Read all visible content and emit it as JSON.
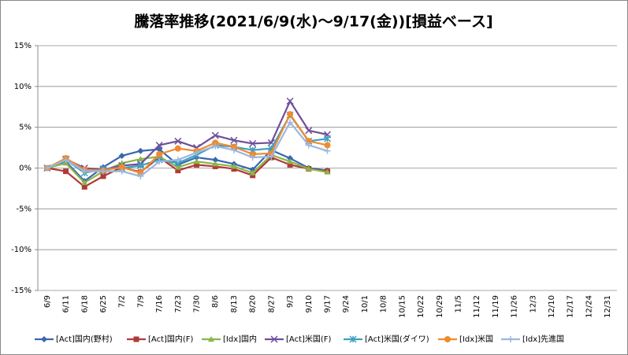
{
  "chart_data": {
    "type": "line",
    "title": "騰落率推移(2021/6/9(水)～9/17(金))[損益ベース]",
    "categories": [
      "6/9",
      "6/11",
      "6/18",
      "6/25",
      "7/2",
      "7/9",
      "7/16",
      "7/23",
      "7/30",
      "8/6",
      "8/13",
      "8/20",
      "8/27",
      "9/3",
      "9/10",
      "9/17",
      "9/24",
      "10/1",
      "10/8",
      "10/15",
      "10/22",
      "10/29",
      "11/5",
      "11/12",
      "11/19",
      "11/26",
      "12/3",
      "12/10",
      "12/17",
      "12/24",
      "12/31"
    ],
    "series": [
      {
        "name": "[Act]国内(野村)",
        "color": "#3a67b0",
        "marker": "diamond",
        "values": [
          0,
          0.8,
          -1.6,
          0.1,
          1.5,
          2.1,
          2.3,
          0.4,
          1.3,
          1.0,
          0.5,
          -0.2,
          2.2,
          1.2,
          0,
          -0.3,
          null,
          null,
          null,
          null,
          null,
          null,
          null,
          null,
          null,
          null,
          null,
          null,
          null,
          null,
          null
        ]
      },
      {
        "name": "[Act]国内(F)",
        "color": "#b03a38",
        "marker": "square",
        "values": [
          0,
          -0.4,
          -2.3,
          -1.0,
          0.1,
          -0.5,
          1.3,
          -0.3,
          0.4,
          0.2,
          -0.1,
          -0.9,
          1.3,
          0.4,
          -0.1,
          -0.4,
          null,
          null,
          null,
          null,
          null,
          null,
          null,
          null,
          null,
          null,
          null,
          null,
          null,
          null,
          null
        ]
      },
      {
        "name": "[Idx]国内",
        "color": "#8cb547",
        "marker": "triangle",
        "values": [
          0,
          0.6,
          -1.8,
          -0.4,
          0.6,
          1.1,
          1.4,
          0.1,
          0.8,
          0.5,
          0.2,
          -0.6,
          1.6,
          0.8,
          -0.1,
          -0.5,
          null,
          null,
          null,
          null,
          null,
          null,
          null,
          null,
          null,
          null,
          null,
          null,
          null,
          null,
          null
        ]
      },
      {
        "name": "[Act]米国(F)",
        "color": "#6f4f9a",
        "marker": "x",
        "values": [
          0,
          1.1,
          0,
          -0.2,
          0.3,
          0.5,
          2.8,
          3.3,
          2.5,
          4.0,
          3.4,
          3.0,
          3.1,
          8.2,
          4.6,
          4.1,
          null,
          null,
          null,
          null,
          null,
          null,
          null,
          null,
          null,
          null,
          null,
          null,
          null,
          null,
          null
        ]
      },
      {
        "name": "[Act]米国(ダイワ)",
        "color": "#3fa0c0",
        "marker": "star",
        "values": [
          0,
          1.0,
          -0.6,
          -0.1,
          0,
          0.3,
          1.0,
          0.6,
          1.6,
          2.8,
          2.6,
          2.2,
          2.4,
          6.5,
          3.3,
          3.6,
          null,
          null,
          null,
          null,
          null,
          null,
          null,
          null,
          null,
          null,
          null,
          null,
          null,
          null,
          null
        ]
      },
      {
        "name": "[Idx]米国",
        "color": "#ef8a30",
        "marker": "circle",
        "values": [
          0,
          1.2,
          -0.2,
          -0.3,
          0.1,
          -0.6,
          1.7,
          2.4,
          2.1,
          3.1,
          2.6,
          1.7,
          1.8,
          6.6,
          3.3,
          2.8,
          null,
          null,
          null,
          null,
          null,
          null,
          null,
          null,
          null,
          null,
          null,
          null,
          null,
          null,
          null
        ]
      },
      {
        "name": "[Idx]先進国",
        "color": "#9ab7e0",
        "marker": "plus",
        "values": [
          0,
          1.0,
          -0.4,
          -0.4,
          -0.4,
          -1.0,
          0.8,
          1.0,
          1.9,
          2.7,
          2.2,
          1.3,
          1.4,
          5.6,
          2.8,
          2.1,
          null,
          null,
          null,
          null,
          null,
          null,
          null,
          null,
          null,
          null,
          null,
          null,
          null,
          null,
          null
        ]
      }
    ],
    "ylim": [
      -15,
      15
    ],
    "yticks": [
      {
        "value": -15,
        "label": "-15%"
      },
      {
        "value": -10,
        "label": "-10%"
      },
      {
        "value": -5,
        "label": "-5%"
      },
      {
        "value": 0,
        "label": "0%"
      },
      {
        "value": 5,
        "label": "5%"
      },
      {
        "value": 10,
        "label": "10%"
      },
      {
        "value": 15,
        "label": "15%"
      }
    ],
    "grid": true,
    "legend": "bottom"
  }
}
